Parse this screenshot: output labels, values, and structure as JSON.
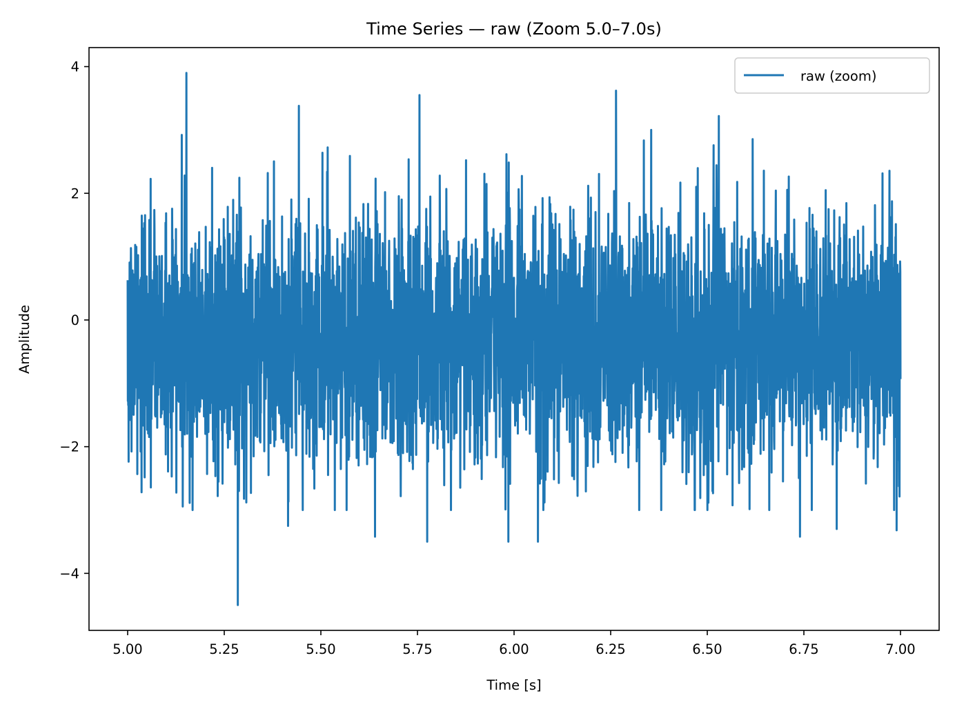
{
  "chart_data": {
    "type": "line",
    "title": "Time Series — raw (Zoom 5.0–7.0s)",
    "xlabel": "Time [s]",
    "ylabel": "Amplitude",
    "xlim": [
      4.9,
      7.1
    ],
    "ylim": [
      -4.9,
      4.3
    ],
    "xticks": [
      5.0,
      5.25,
      5.5,
      5.75,
      6.0,
      6.25,
      6.5,
      6.75,
      7.0
    ],
    "xtick_labels": [
      "5.00",
      "5.25",
      "5.50",
      "5.75",
      "6.00",
      "6.25",
      "6.50",
      "6.75",
      "7.00"
    ],
    "yticks": [
      -4,
      -2,
      0,
      2,
      4
    ],
    "ytick_labels": [
      "−4",
      "−2",
      "0",
      "2",
      "4"
    ],
    "grid": false,
    "legend_position": "top-right",
    "series": [
      {
        "name": "raw (zoom)",
        "color": "#1f77b4",
        "x_start": 5.0,
        "x_end": 7.0,
        "noise_std": 1.0,
        "noise_mean": -0.3,
        "peaks": [
          {
            "x": 5.152,
            "y": 3.9
          },
          {
            "x": 5.285,
            "y": -4.5
          },
          {
            "x": 5.443,
            "y": 3.38
          },
          {
            "x": 5.755,
            "y": 3.55
          },
          {
            "x": 6.264,
            "y": 3.62
          },
          {
            "x": 6.53,
            "y": 3.22
          },
          {
            "x": 6.062,
            "y": -3.5
          },
          {
            "x": 5.64,
            "y": -3.42
          },
          {
            "x": 5.775,
            "y": -3.5
          },
          {
            "x": 5.985,
            "y": -3.5
          },
          {
            "x": 6.74,
            "y": -3.42
          },
          {
            "x": 6.835,
            "y": -3.3
          },
          {
            "x": 6.99,
            "y": -3.32
          },
          {
            "x": 5.415,
            "y": -3.25
          }
        ]
      }
    ]
  }
}
